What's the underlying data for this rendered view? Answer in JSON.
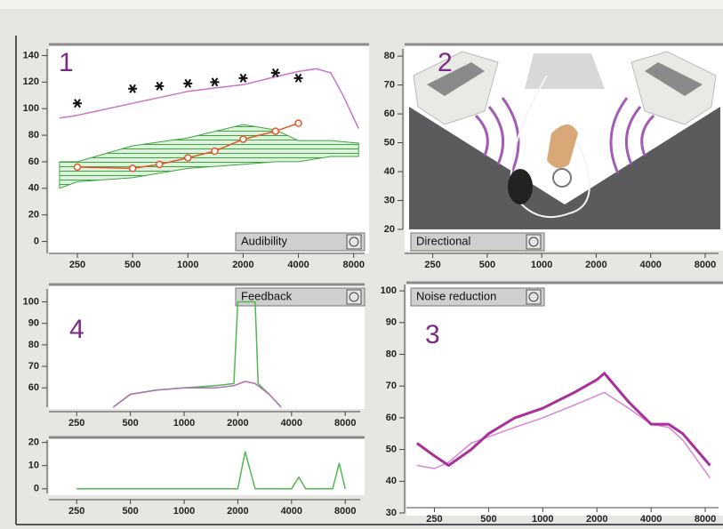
{
  "chart_data": [
    {
      "type": "line",
      "title": "Audibility",
      "annotation": "1",
      "xscale": "log",
      "xlim": [
        185,
        9700
      ],
      "xticks": [
        250,
        500,
        1000,
        2000,
        4000,
        8000
      ],
      "ylim": [
        -9,
        145
      ],
      "yticks": [
        0,
        20,
        40,
        60,
        80,
        100,
        120,
        140
      ],
      "series": [
        {
          "style": "band",
          "color": "#3fa53f",
          "x": [
            200,
            250,
            500,
            1000,
            2000,
            3000,
            4000,
            6000,
            8500
          ],
          "upper": [
            60,
            60,
            72,
            78,
            88,
            84,
            76,
            76,
            74
          ],
          "lower": [
            40,
            45,
            48,
            55,
            58,
            60,
            60,
            64,
            64
          ]
        },
        {
          "style": "line",
          "color": "#c874c8",
          "x": [
            200,
            250,
            500,
            1000,
            1500,
            2000,
            3000,
            4000,
            5000,
            6000,
            7000,
            8500
          ],
          "values": [
            93,
            95,
            104,
            113,
            116,
            118,
            124,
            128,
            130,
            127,
            110,
            85
          ]
        },
        {
          "style": "circles-line",
          "color": "#e0582a",
          "x": [
            250,
            500,
            700,
            1000,
            1400,
            2000,
            3000,
            4000
          ],
          "values": [
            56,
            55,
            58,
            63,
            68,
            77,
            83,
            89
          ]
        },
        {
          "style": "markers",
          "color": "#111111",
          "x": [
            250,
            500,
            700,
            1000,
            1400,
            2000,
            3000,
            4000
          ],
          "values": [
            104,
            115,
            117,
            119,
            120,
            123,
            127,
            123
          ]
        }
      ]
    },
    {
      "type": "image",
      "title": "Directional",
      "annotation": "2",
      "xscale": "log",
      "xlim": [
        185,
        9700
      ],
      "xticks": [
        250,
        500,
        1000,
        2000,
        4000,
        8000
      ],
      "ylim": [
        20,
        82.5
      ],
      "yticks": [
        20,
        30,
        40,
        50,
        60,
        70,
        80
      ],
      "series": []
    },
    {
      "type": "line",
      "title": "Noise reduction",
      "annotation": "3",
      "xscale": "log",
      "xlim": [
        185,
        9700
      ],
      "xticks": [
        250,
        500,
        1000,
        2000,
        4000,
        8000
      ],
      "ylim": [
        30,
        102
      ],
      "yticks": [
        30,
        40,
        50,
        60,
        70,
        80,
        90,
        100
      ],
      "series": [
        {
          "style": "line",
          "color": "#d884d8",
          "x": [
            200,
            250,
            300,
            400,
            500,
            700,
            1000,
            1500,
            2000,
            2200,
            3000,
            4000,
            5000,
            6000,
            8500
          ],
          "values": [
            45,
            44,
            46,
            52,
            54,
            57,
            60,
            64,
            67,
            68,
            63,
            58,
            57,
            53,
            41
          ]
        },
        {
          "style": "line",
          "color": "#a8309a",
          "line_width": 3,
          "x": [
            200,
            250,
            300,
            400,
            500,
            700,
            1000,
            1500,
            2000,
            2200,
            3000,
            4000,
            5000,
            6000,
            8500
          ],
          "values": [
            52,
            48,
            45,
            50,
            55,
            60,
            63,
            68,
            72,
            74,
            65,
            58,
            58,
            55,
            45
          ]
        }
      ]
    },
    {
      "type": "line",
      "title": "Feedback",
      "annotation": "4",
      "xscale": "log",
      "xlim": [
        185,
        9700
      ],
      "xticks": [
        250,
        500,
        1000,
        2000,
        4000,
        8000
      ],
      "ylim": [
        51,
        106
      ],
      "yticks": [
        60,
        70,
        80,
        90,
        100
      ],
      "series": [
        {
          "style": "line",
          "color": "#4fb84f",
          "x": [
            400,
            500,
            700,
            1000,
            1500,
            1900,
            2000,
            2500,
            2600,
            3000,
            3500
          ],
          "values": [
            51,
            57,
            59,
            60,
            61,
            62,
            100,
            100,
            62,
            57,
            51
          ]
        },
        {
          "style": "line",
          "color": "#b070b0",
          "x": [
            400,
            500,
            700,
            1000,
            1500,
            1900,
            2200,
            2500,
            3000,
            3500
          ],
          "values": [
            51,
            57,
            59,
            60,
            60,
            61,
            63,
            62,
            57,
            51
          ]
        }
      ]
    },
    {
      "type": "line",
      "xscale": "log",
      "xlim": [
        185,
        9700
      ],
      "xticks": [
        250,
        500,
        1000,
        2000,
        4000,
        8000
      ],
      "ylim": [
        -2,
        21
      ],
      "yticks": [
        0,
        10,
        20
      ],
      "series": [
        {
          "style": "line",
          "color": "#4fb84f",
          "x": [
            250,
            2000,
            2200,
            2500,
            4000,
            4400,
            4800,
            6800,
            7400,
            8000
          ],
          "values": [
            0,
            0,
            16,
            0,
            0,
            5,
            0,
            0,
            11,
            0
          ]
        }
      ]
    }
  ]
}
